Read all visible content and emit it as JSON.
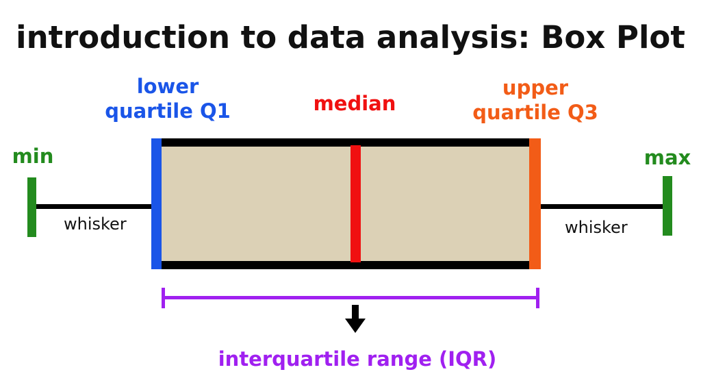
{
  "title": "introduction to data analysis: Box Plot",
  "labels": {
    "min": "min",
    "max": "max",
    "lower_quartile": [
      "lower",
      "quartile Q1"
    ],
    "median": "median",
    "upper_quartile": [
      "upper",
      "quartile Q3"
    ],
    "whisker_left": "whisker",
    "whisker_right": "whisker",
    "iqr": "interquartile range (IQR)"
  },
  "colors": {
    "min_max": "#238b1e",
    "q1": "#1a55e8",
    "median": "#f01010",
    "q3": "#f25c17",
    "iqr": "#a020f0",
    "box_fill": "#dcd1b6",
    "outline": "#000000"
  }
}
